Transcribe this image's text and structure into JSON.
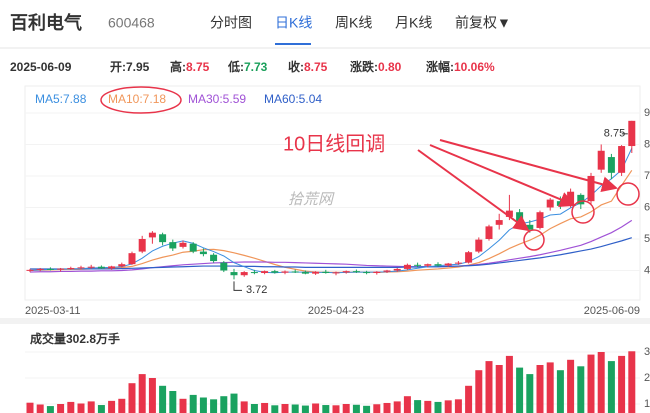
{
  "header": {
    "name": "百利电气",
    "code": "600468",
    "tabs": [
      "分时图",
      "日K线",
      "周K线",
      "月K线",
      "前复权▼"
    ]
  },
  "info": {
    "date": "2025-06-09",
    "items": [
      {
        "label": "开:",
        "value": "7.95",
        "color": "#333333"
      },
      {
        "label": "高:",
        "value": "8.75",
        "color": "#e8344a"
      },
      {
        "label": "低:",
        "value": "7.73",
        "color": "#1a9f5a"
      },
      {
        "label": "收:",
        "value": "8.75",
        "color": "#e8344a"
      },
      {
        "label": "涨跌:",
        "value": "0.80",
        "color": "#e8344a"
      },
      {
        "label": "涨幅:",
        "value": "10.06%",
        "color": "#e8344a"
      }
    ]
  },
  "chart_data": [
    {
      "type": "candlestick",
      "up_color": "#e8344a",
      "down_color": "#1aa260",
      "categories": [
        "2025-03-11",
        null,
        null,
        null,
        null,
        null,
        null,
        null,
        null,
        null,
        null,
        null,
        null,
        null,
        null,
        null,
        null,
        null,
        null,
        null,
        null,
        null,
        null,
        null,
        null,
        null,
        null,
        null,
        null,
        null,
        "2025-04-23",
        null,
        null,
        null,
        null,
        null,
        null,
        null,
        null,
        null,
        null,
        null,
        null,
        null,
        null,
        null,
        null,
        null,
        null,
        null,
        null,
        null,
        null,
        null,
        null,
        null,
        null,
        null,
        null,
        "2025-06-09"
      ],
      "open": [
        4.0,
        4.02,
        4.05,
        4.03,
        4.06,
        4.08,
        4.1,
        4.12,
        4.07,
        4.13,
        4.2,
        4.6,
        5.05,
        5.15,
        4.9,
        4.75,
        4.85,
        4.6,
        4.5,
        4.25,
        3.95,
        3.85,
        3.95,
        3.92,
        3.98,
        3.93,
        3.97,
        3.95,
        3.9,
        3.96,
        3.92,
        3.94,
        3.98,
        3.95,
        3.92,
        3.96,
        4.0,
        4.05,
        4.18,
        4.15,
        4.2,
        4.16,
        4.22,
        4.25,
        4.6,
        5.0,
        5.45,
        5.7,
        5.85,
        5.45,
        5.35,
        6.0,
        6.2,
        6.05,
        6.4,
        6.2,
        7.2,
        7.6,
        7.1,
        7.95
      ],
      "high": [
        4.05,
        4.08,
        4.1,
        4.08,
        4.12,
        4.15,
        4.18,
        4.16,
        4.15,
        4.25,
        4.6,
        5.1,
        5.25,
        5.2,
        4.98,
        4.95,
        4.9,
        4.7,
        4.55,
        4.3,
        4.05,
        3.98,
        4.02,
        4.0,
        4.02,
        4.0,
        4.03,
        4.0,
        3.98,
        4.02,
        3.97,
        4.0,
        4.03,
        3.99,
        3.98,
        4.02,
        4.08,
        4.22,
        4.25,
        4.22,
        4.26,
        4.24,
        4.3,
        4.62,
        5.05,
        5.45,
        5.8,
        6.4,
        5.95,
        5.6,
        5.9,
        6.3,
        6.35,
        6.6,
        6.45,
        7.1,
        8.0,
        7.7,
        7.98,
        8.75
      ],
      "low": [
        3.95,
        3.98,
        4.0,
        3.97,
        4.02,
        4.03,
        4.05,
        4.05,
        4.02,
        4.1,
        4.18,
        4.55,
        4.85,
        4.8,
        4.62,
        4.7,
        4.55,
        4.45,
        4.25,
        3.95,
        3.72,
        3.8,
        3.88,
        3.88,
        3.9,
        3.88,
        3.92,
        3.88,
        3.86,
        3.9,
        3.85,
        3.9,
        3.92,
        3.88,
        3.87,
        3.92,
        3.96,
        4.02,
        4.1,
        4.1,
        4.12,
        4.12,
        4.18,
        4.22,
        4.55,
        4.95,
        5.3,
        5.6,
        5.4,
        5.2,
        5.3,
        5.9,
        5.95,
        6.0,
        5.95,
        6.1,
        7.1,
        6.9,
        7.0,
        7.73
      ],
      "close": [
        4.02,
        4.05,
        4.03,
        4.06,
        4.08,
        4.1,
        4.12,
        4.07,
        4.13,
        4.2,
        4.55,
        5.0,
        5.2,
        4.9,
        4.7,
        4.88,
        4.6,
        4.52,
        4.3,
        4.0,
        3.85,
        3.95,
        3.92,
        3.98,
        3.93,
        3.97,
        3.95,
        3.9,
        3.96,
        3.92,
        3.94,
        3.98,
        3.95,
        3.92,
        3.96,
        4.0,
        4.05,
        4.18,
        4.15,
        4.2,
        4.16,
        4.22,
        4.25,
        4.58,
        4.98,
        5.4,
        5.6,
        5.9,
        5.5,
        5.3,
        5.85,
        6.25,
        6.05,
        6.5,
        6.1,
        7.0,
        7.8,
        7.1,
        7.95,
        8.75
      ],
      "ylim": [
        3.5,
        9.3
      ],
      "yticks": [
        4,
        5,
        6,
        7,
        8,
        9
      ],
      "series": [
        {
          "name": "MA5:7.88",
          "color": "#3b8fe0",
          "values": [
            4.0,
            4.02,
            4.03,
            4.04,
            4.05,
            4.06,
            4.08,
            4.09,
            4.1,
            4.12,
            4.21,
            4.39,
            4.62,
            4.77,
            4.87,
            4.94,
            4.86,
            4.72,
            4.6,
            4.46,
            4.25,
            4.12,
            4.0,
            3.94,
            3.93,
            3.95,
            3.95,
            3.95,
            3.94,
            3.94,
            3.93,
            3.94,
            3.95,
            3.95,
            3.95,
            3.96,
            3.98,
            4.02,
            4.07,
            4.12,
            4.15,
            4.18,
            4.2,
            4.28,
            4.44,
            4.69,
            4.96,
            5.29,
            5.48,
            5.54,
            5.63,
            5.76,
            5.79,
            5.99,
            6.15,
            6.38,
            6.69,
            6.91,
            7.19,
            7.88
          ]
        },
        {
          "name": "MA10:7.18",
          "color": "#f0965a",
          "values": [
            4.0,
            4.01,
            4.02,
            4.03,
            4.03,
            4.04,
            4.05,
            4.06,
            4.07,
            4.09,
            4.13,
            4.22,
            4.33,
            4.42,
            4.49,
            4.58,
            4.61,
            4.66,
            4.67,
            4.63,
            4.56,
            4.48,
            4.39,
            4.29,
            4.19,
            4.1,
            4.04,
            3.98,
            3.95,
            3.94,
            3.94,
            3.94,
            3.95,
            3.95,
            3.94,
            3.95,
            3.96,
            3.98,
            4.01,
            4.03,
            4.05,
            4.08,
            4.11,
            4.17,
            4.25,
            4.38,
            4.53,
            4.7,
            4.84,
            4.96,
            5.12,
            5.33,
            5.49,
            5.64,
            5.7,
            5.86,
            6.08,
            6.2,
            6.7,
            7.18
          ]
        },
        {
          "name": "MA30:5.59",
          "color": "#a052d6",
          "values": [
            3.95,
            3.96,
            3.96,
            3.97,
            3.97,
            3.98,
            3.98,
            3.99,
            3.99,
            4.0,
            4.02,
            4.05,
            4.09,
            4.12,
            4.15,
            4.18,
            4.2,
            4.22,
            4.24,
            4.25,
            4.26,
            4.27,
            4.27,
            4.27,
            4.26,
            4.26,
            4.25,
            4.24,
            4.23,
            4.22,
            4.21,
            4.2,
            4.18,
            4.16,
            4.15,
            4.14,
            4.13,
            4.12,
            4.12,
            4.12,
            4.12,
            4.13,
            4.14,
            4.16,
            4.19,
            4.23,
            4.28,
            4.34,
            4.39,
            4.44,
            4.5,
            4.57,
            4.64,
            4.72,
            4.8,
            4.92,
            5.06,
            5.2,
            5.38,
            5.59
          ]
        },
        {
          "name": "MA60:5.04",
          "color": "#2f5fc8",
          "values": [
            4.05,
            4.05,
            4.05,
            4.05,
            4.05,
            4.05,
            4.05,
            4.05,
            4.05,
            4.06,
            4.07,
            4.08,
            4.09,
            4.1,
            4.11,
            4.12,
            4.13,
            4.14,
            4.14,
            4.14,
            4.14,
            4.13,
            4.13,
            4.12,
            4.12,
            4.11,
            4.11,
            4.1,
            4.1,
            4.1,
            4.1,
            4.1,
            4.1,
            4.1,
            4.1,
            4.1,
            4.1,
            4.11,
            4.11,
            4.12,
            4.12,
            4.13,
            4.14,
            4.15,
            4.17,
            4.2,
            4.24,
            4.28,
            4.32,
            4.36,
            4.4,
            4.45,
            4.5,
            4.56,
            4.62,
            4.68,
            4.76,
            4.85,
            4.94,
            5.04
          ]
        }
      ],
      "annotation": "10日线回调",
      "watermark": "拾荒网",
      "high_label": 8.75,
      "low_label": 3.72
    },
    {
      "type": "bar",
      "title": "成交量302.8万手",
      "values": [
        105,
        98,
        92,
        100,
        108,
        102,
        110,
        96,
        112,
        120,
        180,
        215,
        200,
        170,
        150,
        120,
        135,
        125,
        118,
        130,
        140,
        110,
        100,
        104,
        95,
        100,
        98,
        94,
        102,
        96,
        95,
        100,
        97,
        93,
        99,
        104,
        110,
        130,
        115,
        112,
        108,
        114,
        118,
        170,
        230,
        265,
        250,
        285,
        240,
        215,
        250,
        260,
        230,
        270,
        245,
        290,
        300,
        265,
        285,
        302.8
      ],
      "ylim": [
        0,
        330
      ],
      "yticks": [
        {
          "value": 100,
          "label": "1"
        },
        {
          "value": 200,
          "label": "2"
        },
        {
          "value": 300,
          "label": "3"
        }
      ]
    }
  ]
}
